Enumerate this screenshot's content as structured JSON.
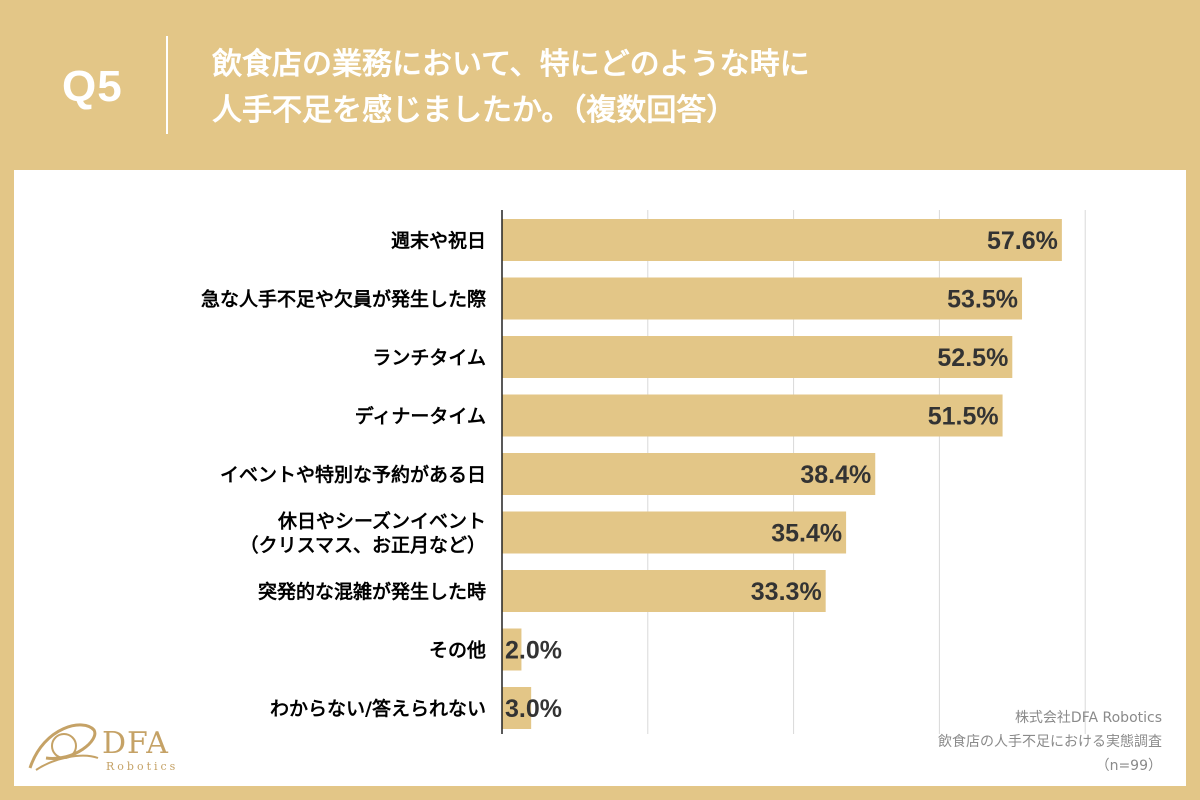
{
  "header": {
    "question_label": "Q5",
    "title_line1": "飲食店の業務において、特にどのような時に",
    "title_line2": "人手不足を感じましたか。（複数回答）"
  },
  "footer": {
    "company": "株式会社DFA Robotics",
    "survey": "飲食店の人手不足における実態調査",
    "sample": "（n=99）"
  },
  "logo": {
    "name": "DFA",
    "sub": "Robotics",
    "color": "#c5a266"
  },
  "colors": {
    "background": "#e3c687",
    "bar": "#e3c687",
    "grid": "#d9d9d9",
    "value_text": "#333333",
    "label_text": "#000000"
  },
  "chart_data": {
    "type": "bar",
    "orientation": "horizontal",
    "title": "飲食店の業務において、特にどのような時に人手不足を感じましたか。（複数回答）",
    "unit": "%",
    "xlim": [
      0,
      100
    ],
    "grid": true,
    "categories": [
      [
        "週末や祝日"
      ],
      [
        "急な人手不足や欠員が発生した際"
      ],
      [
        "ランチタイム"
      ],
      [
        "ディナータイム"
      ],
      [
        "イベントや特別な予約がある日"
      ],
      [
        "休日やシーズンイベント",
        "（クリスマス、お正月など）"
      ],
      [
        "突発的な混雑が発生した時"
      ],
      [
        "その他"
      ],
      [
        "わからない/答えられない"
      ]
    ],
    "values": [
      57.6,
      53.5,
      52.5,
      51.5,
      38.4,
      35.4,
      33.3,
      2.0,
      3.0
    ],
    "value_labels": [
      "57.6%",
      "53.5%",
      "52.5%",
      "51.5%",
      "38.4%",
      "35.4%",
      "33.3%",
      "2.0%",
      "3.0%"
    ]
  }
}
